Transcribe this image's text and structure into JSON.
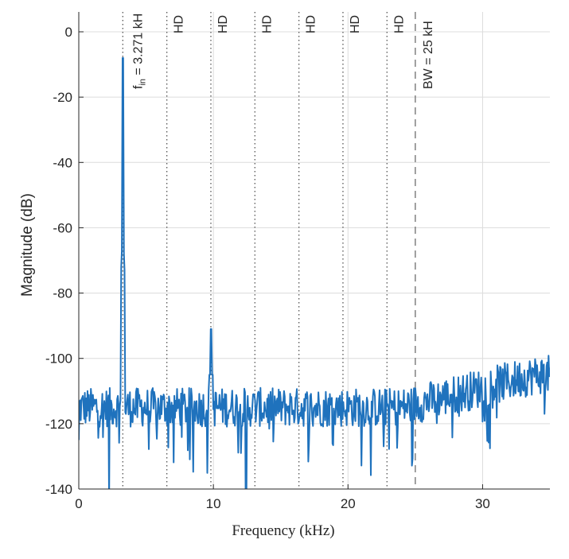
{
  "chart_data": {
    "type": "line",
    "xlabel": "Frequency (kHz)",
    "ylabel": "Magnitude (dB)",
    "xlim": [
      0,
      35
    ],
    "ylim": [
      -140,
      0
    ],
    "xticks": [
      "0",
      "10",
      "20",
      "30"
    ],
    "xtick_values": [
      0,
      10,
      20,
      30
    ],
    "yticks": [
      "0",
      "-20",
      "-40",
      "-60",
      "-80",
      "-100",
      "-120",
      "-140"
    ],
    "ytick_values": [
      0,
      -20,
      -40,
      -60,
      -80,
      -100,
      -120,
      -140
    ],
    "grid": true,
    "series_color": "#1f72bd",
    "marker_color": "#555555",
    "fundamental": {
      "freq_khz": 3.271,
      "peak_db": -8,
      "label_main": "f",
      "label_sub": "in",
      "label_rest": " = 3.271 kH"
    },
    "harmonics": [
      {
        "freq_khz": 6.542,
        "label": "HD"
      },
      {
        "freq_khz": 9.813,
        "label": "HD"
      },
      {
        "freq_khz": 13.084,
        "label": "HD"
      },
      {
        "freq_khz": 16.355,
        "label": "HD"
      },
      {
        "freq_khz": 19.626,
        "label": "HD"
      },
      {
        "freq_khz": 22.897,
        "label": "HD"
      }
    ],
    "bandwidth": {
      "freq_khz": 25,
      "label": "BW = 25 kH"
    },
    "spectrum_description": {
      "noise_floor_db_low_freq": -115,
      "noise_floor_db_high_freq": -105,
      "third_harmonic_peak_db": -91
    }
  }
}
